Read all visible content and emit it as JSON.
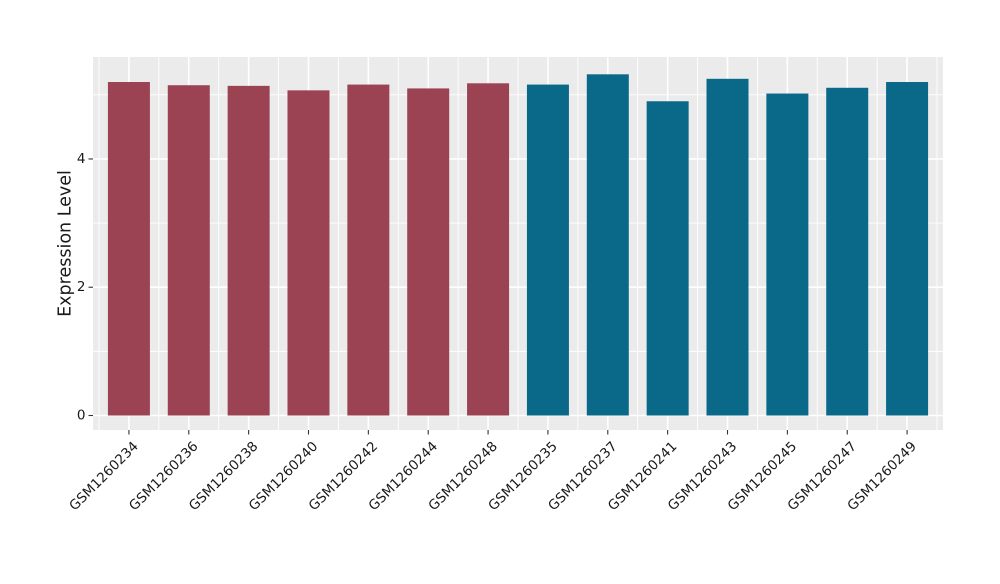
{
  "figure": {
    "background": "#ffffff",
    "panel_background": "#ebebeb",
    "gridline_color": "#ffffff",
    "tick_color": "#333333",
    "text_color": "#1a1a1a"
  },
  "chart_data": {
    "type": "bar",
    "title": "",
    "xlabel": "",
    "ylabel": "Expression Level",
    "categories": [
      "GSM1260234",
      "GSM1260236",
      "GSM1260238",
      "GSM1260240",
      "GSM1260242",
      "GSM1260244",
      "GSM1260248",
      "GSM1260235",
      "GSM1260237",
      "GSM1260241",
      "GSM1260243",
      "GSM1260245",
      "GSM1260247",
      "GSM1260249"
    ],
    "values": [
      5.2,
      5.15,
      5.14,
      5.07,
      5.16,
      5.1,
      5.18,
      5.16,
      5.32,
      4.9,
      5.25,
      5.02,
      5.11,
      5.2
    ],
    "color_groups": [
      "maroon",
      "maroon",
      "maroon",
      "maroon",
      "maroon",
      "maroon",
      "maroon",
      "teal",
      "teal",
      "teal",
      "teal",
      "teal",
      "teal",
      "teal"
    ],
    "group_colors": {
      "maroon": "#9b4353",
      "teal": "#0a6888"
    },
    "yticks": [
      0,
      2,
      4
    ],
    "minor_yticks": [
      1,
      3,
      5
    ],
    "ylim": [
      0,
      5.59
    ],
    "grid": true,
    "legend": "none"
  }
}
